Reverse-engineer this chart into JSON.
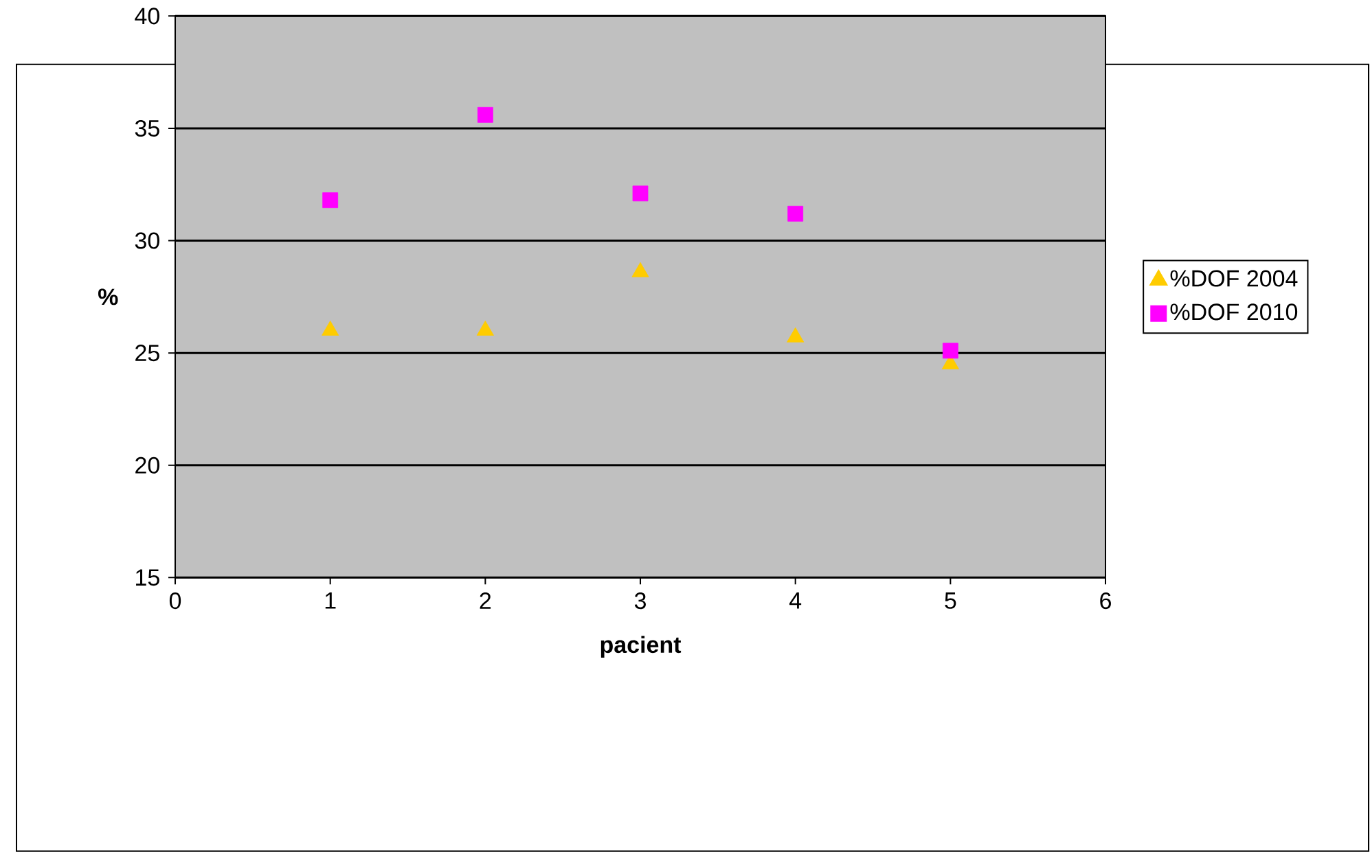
{
  "chart_data": {
    "type": "scatter",
    "xlabel": "pacient",
    "ylabel": "%",
    "xlim": [
      0,
      6
    ],
    "xticks": [
      0,
      1,
      2,
      3,
      4,
      5,
      6
    ],
    "ylim": [
      15,
      40
    ],
    "yticks": [
      15,
      20,
      25,
      30,
      35,
      40
    ],
    "grid": "y",
    "legend": "right",
    "series": [
      {
        "name": "%DOF 2004",
        "color": "#ffcc00",
        "marker": "triangle",
        "x": [
          1,
          2,
          3,
          4,
          5
        ],
        "values": [
          26.0,
          26.0,
          28.6,
          25.7,
          24.5
        ]
      },
      {
        "name": "%DOF 2010",
        "color": "#ff00ff",
        "marker": "square",
        "x": [
          1,
          2,
          3,
          4,
          5
        ],
        "values": [
          31.8,
          35.6,
          32.1,
          31.2,
          25.1
        ]
      }
    ]
  }
}
